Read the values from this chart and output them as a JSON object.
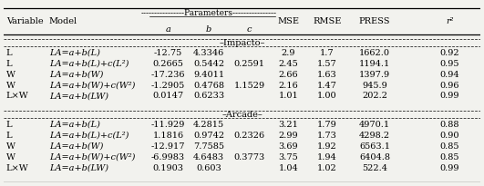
{
  "params_header": "----------------Parameters----------------",
  "impacto_rows": [
    [
      "L",
      "LA=a+b(L)",
      "-12.75",
      "4.3346",
      "",
      "2.9",
      "1.7",
      "1662.0",
      "0.92"
    ],
    [
      "L",
      "LA=a+b(L)+c(L²)",
      "0.2665",
      "0.5442",
      "0.2591",
      "2.45",
      "1.57",
      "1194.1",
      "0.95"
    ],
    [
      "W",
      "LA=a+b(W)",
      "-17.236",
      "9.4011",
      "",
      "2.66",
      "1.63",
      "1397.9",
      "0.94"
    ],
    [
      "W",
      "LA=a+b(W)+c(W²)",
      "-1.2905",
      "0.4768",
      "1.1529",
      "2.16",
      "1.47",
      "945.9",
      "0.96"
    ],
    [
      "L×W",
      "LA=a+b(LW)",
      "0.0147",
      "0.6233",
      "",
      "1.01",
      "1.00",
      "202.2",
      "0.99"
    ]
  ],
  "arcade_rows": [
    [
      "L",
      "LA=a+b(L)",
      "-11.929",
      "4.2815",
      "",
      "3.21",
      "1.79",
      "4970.1",
      "0.88"
    ],
    [
      "L",
      "LA=a+b(L)+c(L²)",
      "1.1816",
      "0.9742",
      "0.2326",
      "2.99",
      "1.73",
      "4298.2",
      "0.90"
    ],
    [
      "W",
      "LA=a+b(W)",
      "-12.917",
      "7.7585",
      "",
      "3.69",
      "1.92",
      "6563.1",
      "0.85"
    ],
    [
      "W",
      "LA=a+b(W)+c(W²)",
      "-6.9983",
      "4.6483",
      "0.3773",
      "3.75",
      "1.94",
      "6404.8",
      "0.85"
    ],
    [
      "L×W",
      "LA=a+b(LW)",
      "0.1903",
      "0.603",
      "",
      "1.04",
      "1.02",
      "522.4",
      "0.99"
    ]
  ],
  "font_size": 7.0,
  "bg_color": "#f2f2ee"
}
